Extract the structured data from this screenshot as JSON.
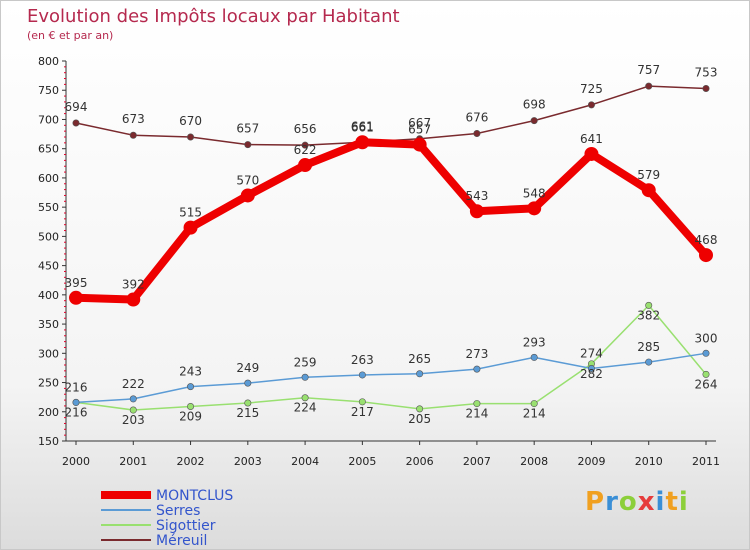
{
  "header": {
    "title": "Evolution des Impôts locaux par Habitant",
    "subtitle": "(en € et par an)"
  },
  "logo": {
    "parts": [
      "P",
      "r",
      "o",
      "x",
      "i",
      "t",
      "i"
    ]
  },
  "chart_data": {
    "type": "line",
    "title": "Evolution des Impôts locaux par Habitant",
    "subtitle": "(en € et par an)",
    "xlabel": "",
    "ylabel": "",
    "x": [
      "2000",
      "2001",
      "2002",
      "2003",
      "2004",
      "2005",
      "2006",
      "2007",
      "2008",
      "2009",
      "2010",
      "2011"
    ],
    "ylim": [
      150,
      800
    ],
    "yticks": [
      150,
      200,
      250,
      300,
      350,
      400,
      450,
      500,
      550,
      600,
      650,
      700,
      750,
      800
    ],
    "grid": false,
    "legend_position": "bottom-left",
    "series": [
      {
        "name": "MONTCLUS",
        "color": "#ee0000",
        "values": [
          395,
          392,
          515,
          570,
          622,
          661,
          657,
          543,
          548,
          641,
          579,
          468
        ]
      },
      {
        "name": "Serres",
        "color": "#5b9bd5",
        "values": [
          216,
          222,
          243,
          249,
          259,
          263,
          265,
          273,
          293,
          274,
          285,
          300
        ]
      },
      {
        "name": "Sigottier",
        "color": "#99e070",
        "values": [
          216,
          203,
          209,
          215,
          224,
          217,
          205,
          214,
          214,
          282,
          382,
          264
        ]
      },
      {
        "name": "Méreuil",
        "color": "#7a2a2e",
        "values": [
          694,
          673,
          670,
          657,
          656,
          661,
          667,
          676,
          698,
          725,
          757,
          753
        ]
      }
    ]
  }
}
